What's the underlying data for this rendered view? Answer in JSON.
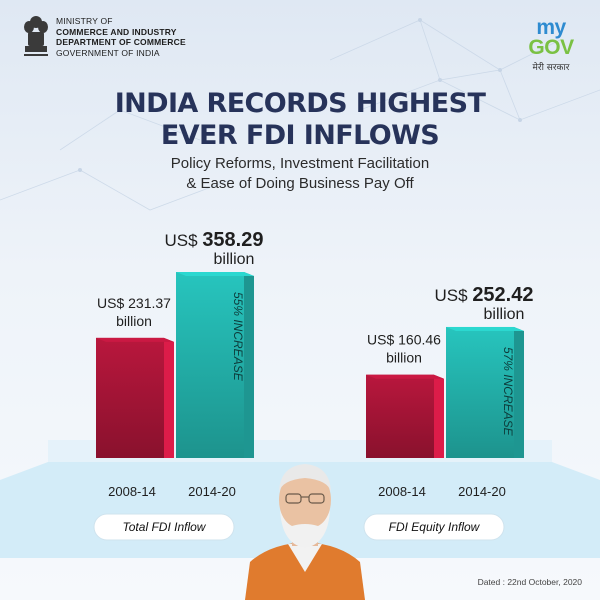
{
  "header": {
    "ministry_lines": [
      "MINISTRY OF",
      "COMMERCE AND INDUSTRY",
      "DEPARTMENT OF COMMERCE",
      "GOVERNMENT OF INDIA"
    ],
    "emblem_icon": "state-emblem-icon",
    "mygov": {
      "my": "my",
      "gov": "GOV",
      "hindi": "मेरी सरकार"
    }
  },
  "title_line1": "INDIA RECORDS HIGHEST",
  "title_line2": "EVER FDI INFLOWS",
  "subtitle_line1": "Policy Reforms, Investment Facilitation",
  "subtitle_line2": "& Ease of Doing Business Pay Off",
  "dated": "Dated : 22nd October, 2020",
  "colors": {
    "bar_old": "#b0163a",
    "bar_new": "#25bcb5",
    "title": "#27335a",
    "platform": "#d3ecf8"
  },
  "chart_data": [
    {
      "type": "bar",
      "group_label": "Total FDI Inflow",
      "categories": [
        "2008-14",
        "2014-20"
      ],
      "values": [
        231.37,
        358.29
      ],
      "value_prefix": "US$",
      "value_texts": [
        "231.37",
        "358.29"
      ],
      "unit": "billion",
      "annotation": "55% INCREASE",
      "ylim": [
        0,
        400
      ]
    },
    {
      "type": "bar",
      "group_label": "FDI Equity Inflow",
      "categories": [
        "2008-14",
        "2014-20"
      ],
      "values": [
        160.46,
        252.42
      ],
      "value_prefix": "US$",
      "value_texts": [
        "160.46",
        "252.42"
      ],
      "unit": "billion",
      "annotation": "57% INCREASE",
      "ylim": [
        0,
        400
      ]
    }
  ]
}
